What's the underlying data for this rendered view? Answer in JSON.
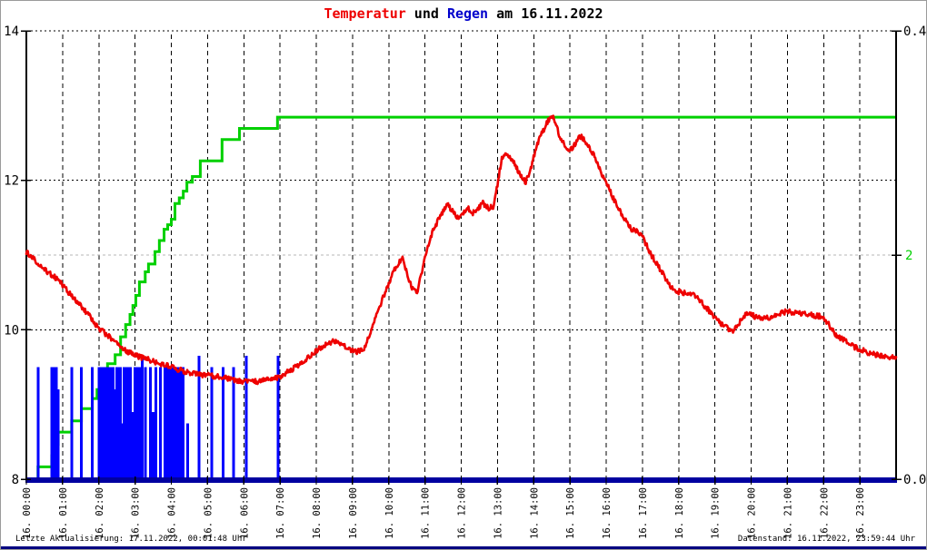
{
  "page": {
    "title_parts": [
      {
        "text": "Temperatur",
        "color": "#ee0000"
      },
      {
        "text": " und ",
        "color": "#000000"
      },
      {
        "text": "Regen",
        "color": "#0000cc"
      },
      {
        "text": " am 16.11.2022",
        "color": "#000000"
      }
    ],
    "footer_left": "Letzte Aktualisierung: 17.11.2022, 00:01:48 Uhr",
    "footer_right": "Datenstand: 16.11.2022, 23:59:44 Uhr"
  },
  "chart_data": {
    "type": "line+bar",
    "title": "Temperatur und Regen am 16.11.2022",
    "grid": {
      "vertical_dashed": true,
      "horizontal_dotted": true,
      "gray_line_at_green_value": 2
    },
    "x_axis": {
      "min_hours": 0,
      "max_hours": 24,
      "tick_interval_hours": 1,
      "tick_labels": [
        "16. 00:00",
        "16. 01:00",
        "16. 02:00",
        "16. 03:00",
        "16. 04:00",
        "16. 05:00",
        "16. 06:00",
        "16. 07:00",
        "16. 08:00",
        "16. 09:00",
        "16. 10:00",
        "16. 11:00",
        "16. 12:00",
        "16. 13:00",
        "16. 14:00",
        "16. 15:00",
        "16. 16:00",
        "16. 17:00",
        "16. 18:00",
        "16. 19:00",
        "16. 20:00",
        "16. 21:00",
        "16. 22:00",
        "16. 23:00"
      ]
    },
    "y_left_temperature": {
      "min": 8,
      "max": 14,
      "tick_labels": [
        "14",
        "12",
        "10",
        "8"
      ],
      "tick_values": [
        14,
        12,
        10,
        8
      ],
      "color": "#000000"
    },
    "y_right_rain_rate": {
      "min": 0.0,
      "max": 0.4,
      "top_label": "0.4",
      "bottom_label": "0.0",
      "color": "#000000"
    },
    "y_right_rain_cumulative": {
      "min": 0,
      "max": 4,
      "tick_label": "2",
      "tick_value": 2,
      "color": "#00d000"
    },
    "series": [
      {
        "name": "Temperatur",
        "type": "line",
        "axis": "y_left_temperature",
        "color": "#ee0000",
        "points": [
          [
            0,
            11.05
          ],
          [
            0.25,
            10.92
          ],
          [
            0.5,
            10.8
          ],
          [
            0.75,
            10.72
          ],
          [
            1.0,
            10.6
          ],
          [
            1.25,
            10.45
          ],
          [
            1.5,
            10.33
          ],
          [
            1.75,
            10.18
          ],
          [
            2.0,
            10.02
          ],
          [
            2.25,
            9.92
          ],
          [
            2.5,
            9.82
          ],
          [
            2.75,
            9.72
          ],
          [
            3.0,
            9.66
          ],
          [
            3.5,
            9.58
          ],
          [
            4.0,
            9.5
          ],
          [
            4.5,
            9.42
          ],
          [
            5.0,
            9.39
          ],
          [
            5.5,
            9.36
          ],
          [
            5.75,
            9.33
          ],
          [
            6.0,
            9.31
          ],
          [
            6.25,
            9.3
          ],
          [
            6.5,
            9.32
          ],
          [
            6.75,
            9.34
          ],
          [
            7.0,
            9.37
          ],
          [
            7.25,
            9.45
          ],
          [
            7.5,
            9.52
          ],
          [
            7.75,
            9.62
          ],
          [
            8.0,
            9.72
          ],
          [
            8.3,
            9.82
          ],
          [
            8.5,
            9.85
          ],
          [
            8.7,
            9.8
          ],
          [
            8.9,
            9.75
          ],
          [
            9.1,
            9.7
          ],
          [
            9.3,
            9.73
          ],
          [
            9.5,
            9.95
          ],
          [
            9.7,
            10.25
          ],
          [
            9.9,
            10.5
          ],
          [
            10.05,
            10.68
          ],
          [
            10.2,
            10.85
          ],
          [
            10.38,
            10.95
          ],
          [
            10.5,
            10.75
          ],
          [
            10.65,
            10.55
          ],
          [
            10.78,
            10.5
          ],
          [
            10.95,
            10.85
          ],
          [
            11.05,
            11.05
          ],
          [
            11.2,
            11.3
          ],
          [
            11.45,
            11.55
          ],
          [
            11.6,
            11.68
          ],
          [
            11.75,
            11.6
          ],
          [
            11.9,
            11.5
          ],
          [
            12.05,
            11.55
          ],
          [
            12.2,
            11.62
          ],
          [
            12.3,
            11.55
          ],
          [
            12.45,
            11.62
          ],
          [
            12.6,
            11.7
          ],
          [
            12.75,
            11.62
          ],
          [
            12.88,
            11.65
          ],
          [
            13.0,
            11.95
          ],
          [
            13.12,
            12.3
          ],
          [
            13.25,
            12.37
          ],
          [
            13.4,
            12.28
          ],
          [
            13.6,
            12.1
          ],
          [
            13.78,
            11.97
          ],
          [
            13.95,
            12.2
          ],
          [
            14.05,
            12.42
          ],
          [
            14.2,
            12.6
          ],
          [
            14.35,
            12.75
          ],
          [
            14.5,
            12.89
          ],
          [
            14.6,
            12.75
          ],
          [
            14.75,
            12.55
          ],
          [
            14.95,
            12.4
          ],
          [
            15.1,
            12.45
          ],
          [
            15.25,
            12.6
          ],
          [
            15.4,
            12.55
          ],
          [
            15.55,
            12.42
          ],
          [
            15.7,
            12.3
          ],
          [
            15.85,
            12.12
          ],
          [
            16.0,
            11.97
          ],
          [
            16.25,
            11.7
          ],
          [
            16.5,
            11.5
          ],
          [
            16.7,
            11.35
          ],
          [
            16.85,
            11.33
          ],
          [
            17.0,
            11.24
          ],
          [
            17.25,
            11.0
          ],
          [
            17.5,
            10.8
          ],
          [
            17.75,
            10.6
          ],
          [
            17.9,
            10.52
          ],
          [
            18.1,
            10.5
          ],
          [
            18.3,
            10.48
          ],
          [
            18.5,
            10.45
          ],
          [
            18.75,
            10.3
          ],
          [
            19.0,
            10.17
          ],
          [
            19.25,
            10.05
          ],
          [
            19.5,
            9.97
          ],
          [
            19.75,
            10.15
          ],
          [
            19.9,
            10.22
          ],
          [
            20.1,
            10.18
          ],
          [
            20.4,
            10.15
          ],
          [
            20.7,
            10.2
          ],
          [
            21.0,
            10.25
          ],
          [
            21.3,
            10.22
          ],
          [
            21.6,
            10.2
          ],
          [
            21.9,
            10.18
          ],
          [
            22.1,
            10.1
          ],
          [
            22.3,
            9.95
          ],
          [
            22.5,
            9.88
          ],
          [
            22.8,
            9.78
          ],
          [
            23.0,
            9.74
          ],
          [
            23.3,
            9.68
          ],
          [
            23.6,
            9.65
          ],
          [
            24.0,
            9.63
          ]
        ]
      },
      {
        "name": "Regen kumuliert",
        "type": "step-line",
        "axis": "y_right_rain_cumulative",
        "color": "#00d000",
        "points": [
          [
            0,
            0
          ],
          [
            0.32,
            0.11
          ],
          [
            0.7,
            0.21
          ],
          [
            0.76,
            0.31
          ],
          [
            0.88,
            0.42
          ],
          [
            1.25,
            0.52
          ],
          [
            1.52,
            0.63
          ],
          [
            1.82,
            0.72
          ],
          [
            1.95,
            0.8
          ],
          [
            2.08,
            0.88
          ],
          [
            2.16,
            0.95
          ],
          [
            2.24,
            1.03
          ],
          [
            2.45,
            1.11
          ],
          [
            2.6,
            1.27
          ],
          [
            2.74,
            1.38
          ],
          [
            2.86,
            1.47
          ],
          [
            2.94,
            1.55
          ],
          [
            3.02,
            1.64
          ],
          [
            3.12,
            1.76
          ],
          [
            3.28,
            1.85
          ],
          [
            3.37,
            1.92
          ],
          [
            3.55,
            2.03
          ],
          [
            3.67,
            2.13
          ],
          [
            3.8,
            2.23
          ],
          [
            3.9,
            2.27
          ],
          [
            4.0,
            2.32
          ],
          [
            4.1,
            2.46
          ],
          [
            4.22,
            2.51
          ],
          [
            4.33,
            2.57
          ],
          [
            4.43,
            2.65
          ],
          [
            4.58,
            2.7
          ],
          [
            4.8,
            2.84
          ],
          [
            5.4,
            3.03
          ],
          [
            5.88,
            3.13
          ],
          [
            6.93,
            3.23
          ],
          [
            24,
            3.23
          ]
        ]
      },
      {
        "name": "Regen",
        "type": "bar",
        "axis": "y_right_rain_rate",
        "color": "#0000ff",
        "bars": [
          [
            0.32,
            0.1
          ],
          [
            0.7,
            0.1
          ],
          [
            0.76,
            0.1
          ],
          [
            0.83,
            0.1
          ],
          [
            0.88,
            0.08
          ],
          [
            1.25,
            0.1
          ],
          [
            1.52,
            0.1
          ],
          [
            1.82,
            0.1
          ],
          [
            2.0,
            0.1
          ],
          [
            2.08,
            0.1
          ],
          [
            2.13,
            0.1
          ],
          [
            2.2,
            0.1
          ],
          [
            2.25,
            0.1
          ],
          [
            2.3,
            0.1
          ],
          [
            2.35,
            0.1
          ],
          [
            2.4,
            0.1
          ],
          [
            2.45,
            0.08
          ],
          [
            2.5,
            0.1
          ],
          [
            2.55,
            0.1
          ],
          [
            2.6,
            0.1
          ],
          [
            2.65,
            0.05
          ],
          [
            2.7,
            0.1
          ],
          [
            2.75,
            0.1
          ],
          [
            2.8,
            0.1
          ],
          [
            2.87,
            0.1
          ],
          [
            2.93,
            0.06
          ],
          [
            3.0,
            0.1
          ],
          [
            3.07,
            0.1
          ],
          [
            3.13,
            0.1
          ],
          [
            3.2,
            0.11
          ],
          [
            3.28,
            0.1
          ],
          [
            3.42,
            0.1
          ],
          [
            3.5,
            0.06
          ],
          [
            3.57,
            0.1
          ],
          [
            3.7,
            0.1
          ],
          [
            3.82,
            0.1
          ],
          [
            3.88,
            0.1
          ],
          [
            3.95,
            0.1
          ],
          [
            4.02,
            0.1
          ],
          [
            4.1,
            0.1
          ],
          [
            4.18,
            0.1
          ],
          [
            4.25,
            0.1
          ],
          [
            4.32,
            0.1
          ],
          [
            4.45,
            0.05
          ],
          [
            4.77,
            0.11
          ],
          [
            5.12,
            0.1
          ],
          [
            5.43,
            0.1
          ],
          [
            5.72,
            0.1
          ],
          [
            6.07,
            0.11
          ],
          [
            6.95,
            0.11
          ]
        ]
      }
    ],
    "baseline_color": "#0000a0",
    "gridline_color": "#000000",
    "gray_gridline_color": "#b4b4b4",
    "legend_position": "none"
  }
}
